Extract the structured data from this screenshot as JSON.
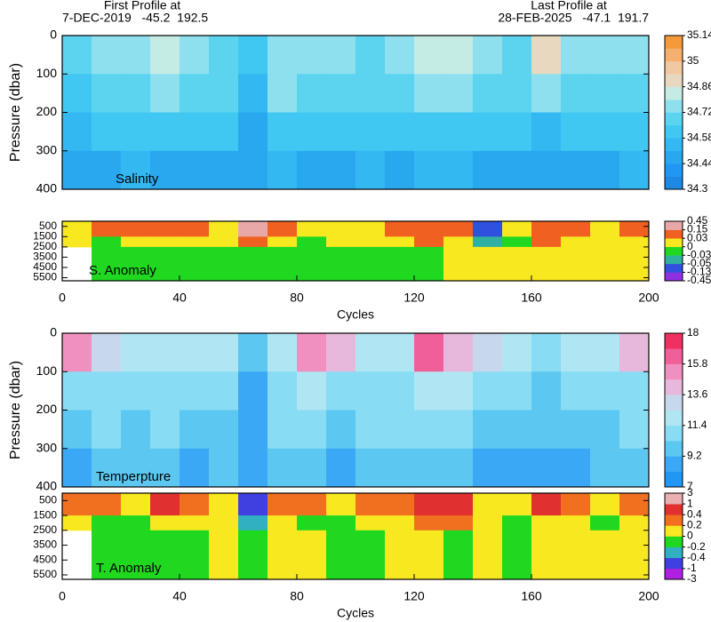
{
  "header": {
    "first_label": "First Profile at",
    "first_profile": "7-DEC-2019   -45.2  192.5",
    "last_label": "Last Profile at",
    "last_profile": "28-FEB-2025   -47.1  191.7"
  },
  "chart_data": [
    {
      "type": "heatmap",
      "label": "Salinity",
      "ylabel": "Pressure (dbar)",
      "xlim": [
        0,
        200
      ],
      "ylim": [
        400,
        0
      ],
      "yticks": [
        0,
        100,
        200,
        300,
        400
      ],
      "xbins": [
        0,
        10,
        20,
        30,
        40,
        50,
        60,
        70,
        80,
        90,
        100,
        110,
        120,
        130,
        140,
        150,
        160,
        170,
        180,
        190,
        200
      ],
      "ybins": [
        0,
        100,
        200,
        300,
        400
      ],
      "values": [
        [
          34.68,
          34.72,
          34.76,
          34.82,
          34.74,
          34.7,
          34.58,
          34.78,
          34.74,
          34.72,
          34.7,
          34.72,
          34.84,
          34.8,
          34.72,
          34.7,
          34.88,
          34.76,
          34.74,
          34.76
        ],
        [
          34.64,
          34.68,
          34.7,
          34.74,
          34.7,
          34.66,
          34.56,
          34.72,
          34.7,
          34.68,
          34.66,
          34.68,
          34.76,
          34.74,
          34.68,
          34.66,
          34.74,
          34.7,
          34.7,
          34.7
        ],
        [
          34.56,
          34.58,
          34.62,
          34.62,
          34.6,
          34.58,
          34.5,
          34.62,
          34.6,
          34.58,
          34.6,
          34.6,
          34.62,
          34.62,
          34.6,
          34.58,
          34.56,
          34.6,
          34.6,
          34.6
        ],
        [
          34.48,
          34.5,
          34.52,
          34.5,
          34.5,
          34.5,
          34.44,
          34.52,
          34.5,
          34.5,
          34.52,
          34.5,
          34.52,
          34.52,
          34.5,
          34.5,
          34.46,
          34.5,
          34.5,
          34.52
        ]
      ],
      "colorbar": {
        "ticks": [
          34.3,
          34.44,
          34.58,
          34.72,
          34.86,
          35,
          35.14
        ],
        "colors": [
          "#1e88e5",
          "#2196f3",
          "#29a8f0",
          "#33b8f2",
          "#40c8f2",
          "#5cd4f0",
          "#8ee0ee",
          "#c4ece4",
          "#e8d8c0",
          "#f2c8a0",
          "#f5b070",
          "#f59a3a"
        ]
      }
    },
    {
      "type": "heatmap",
      "label": "S. Anomaly",
      "xlabel": "Cycles",
      "xlim": [
        0,
        200
      ],
      "xticks": [
        0,
        40,
        80,
        120,
        160,
        200
      ],
      "ylim": [
        5800,
        0
      ],
      "yticks": [
        500,
        1500,
        2500,
        3500,
        4500,
        5500
      ],
      "xbins": [
        0,
        10,
        20,
        30,
        40,
        50,
        60,
        70,
        80,
        90,
        100,
        110,
        120,
        130,
        140,
        150,
        160,
        170,
        180,
        190,
        200
      ],
      "ybins": [
        0,
        1500,
        2500,
        5800
      ],
      "values": [
        [
          0.02,
          0.05,
          0.04,
          0.08,
          0.03,
          0.01,
          0.2,
          0.06,
          0.02,
          0.01,
          0.02,
          0.03,
          0.08,
          0.05,
          -0.06,
          0.02,
          0.1,
          0.04,
          0.02,
          0.03
        ],
        [
          0.01,
          -0.01,
          0.01,
          0.02,
          0.01,
          0.01,
          0.1,
          0.02,
          -0.01,
          0.01,
          0.01,
          0.01,
          0.03,
          0.01,
          -0.04,
          -0.01,
          0.05,
          0.02,
          0.01,
          0.01
        ],
        [
          null,
          -0.01,
          -0.01,
          -0.01,
          -0.01,
          -0.01,
          -0.01,
          -0.01,
          -0.01,
          -0.01,
          -0.01,
          -0.01,
          -0.01,
          0.01,
          0.01,
          0.01,
          0.01,
          0.01,
          0.01,
          0.01
        ]
      ],
      "colorbar": {
        "ticks": [
          -0.45,
          -0.13,
          -0.05,
          -0.03,
          0,
          0.03,
          0.15,
          0.45
        ],
        "colors": [
          "#9030e0",
          "#3050e0",
          "#30b0a0",
          "#20d820",
          "#f8e820",
          "#f06020",
          "#e8a8a8"
        ]
      }
    },
    {
      "type": "heatmap",
      "label": "Temperpture",
      "ylabel": "Pressure (dbar)",
      "xlim": [
        0,
        200
      ],
      "ylim": [
        400,
        0
      ],
      "yticks": [
        0,
        100,
        200,
        300,
        400
      ],
      "xbins": [
        0,
        10,
        20,
        30,
        40,
        50,
        60,
        70,
        80,
        90,
        100,
        110,
        120,
        130,
        140,
        150,
        160,
        170,
        180,
        190,
        200
      ],
      "ybins": [
        0,
        100,
        200,
        300,
        400
      ],
      "values": [
        [
          15.5,
          13,
          11.6,
          11.8,
          11.8,
          11.5,
          9.5,
          11.6,
          15,
          14,
          11.6,
          11.6,
          16,
          14.5,
          12.5,
          11.8,
          11,
          11.8,
          12,
          14.5
        ],
        [
          11.2,
          11.2,
          11.0,
          11.2,
          11.2,
          11.0,
          9,
          11.2,
          11.4,
          11.2,
          11.0,
          11.0,
          11.6,
          11.4,
          11.0,
          11.0,
          10,
          11.0,
          11.0,
          11.2
        ],
        [
          10.2,
          10.4,
          10.2,
          10.6,
          10.2,
          10.2,
          8.8,
          10.6,
          10.4,
          10.2,
          10.4,
          10.6,
          10.4,
          10.4,
          10.2,
          10.0,
          9.2,
          10.2,
          10.2,
          10.4
        ],
        [
          9.0,
          9.2,
          9.4,
          9.2,
          9.0,
          9.2,
          8.6,
          9.4,
          9.2,
          9.0,
          9.2,
          9.2,
          9.2,
          9.4,
          9.0,
          9.0,
          8.8,
          9.0,
          9.2,
          9.2
        ]
      ],
      "colorbar": {
        "ticks": [
          7,
          9.2,
          11.4,
          13.6,
          15.8,
          18
        ],
        "colors": [
          "#2196f3",
          "#3aa8f4",
          "#5cc8f2",
          "#88dcf4",
          "#b0e6f4",
          "#c8d8ec",
          "#e8b8dc",
          "#f090c0",
          "#f06098",
          "#f03060"
        ]
      }
    },
    {
      "type": "heatmap",
      "label": "T. Anomaly",
      "xlabel": "Cycles",
      "xlim": [
        0,
        200
      ],
      "xticks": [
        0,
        40,
        80,
        120,
        160,
        200
      ],
      "ylim": [
        5800,
        0
      ],
      "yticks": [
        500,
        1500,
        2500,
        3500,
        4500,
        5500
      ],
      "xbins": [
        0,
        10,
        20,
        30,
        40,
        50,
        60,
        70,
        80,
        90,
        100,
        110,
        120,
        130,
        140,
        150,
        160,
        170,
        180,
        190,
        200
      ],
      "ybins": [
        0,
        1500,
        2500,
        5800
      ],
      "values": [
        [
          0.3,
          0.2,
          0.1,
          0.5,
          0.2,
          0.1,
          -0.5,
          0.3,
          0.2,
          0.1,
          0.2,
          0.2,
          0.6,
          0.5,
          0.1,
          0.1,
          0.4,
          0.2,
          0.1,
          0.2
        ],
        [
          0.1,
          -0.1,
          -0.1,
          0.1,
          0.1,
          0.1,
          -0.3,
          0.1,
          -0.1,
          -0.1,
          0.1,
          0.1,
          0.2,
          0.3,
          0.1,
          -0.1,
          0.1,
          0.1,
          -0.1,
          0.1
        ],
        [
          null,
          -0.1,
          -0.1,
          -0.1,
          -0.1,
          0.1,
          -0.1,
          0.1,
          0.1,
          -0.1,
          -0.1,
          0.1,
          0.1,
          -0.1,
          0.1,
          -0.1,
          0.1,
          0.1,
          0.1,
          0.1
        ]
      ],
      "colorbar": {
        "ticks": [
          -3,
          -1,
          -0.4,
          -0.2,
          0,
          0.2,
          0.4,
          1,
          3
        ],
        "colors": [
          "#b020e0",
          "#4040e0",
          "#30b0c0",
          "#20d820",
          "#f8e820",
          "#f07020",
          "#e03030",
          "#e8b0b0"
        ]
      }
    }
  ]
}
